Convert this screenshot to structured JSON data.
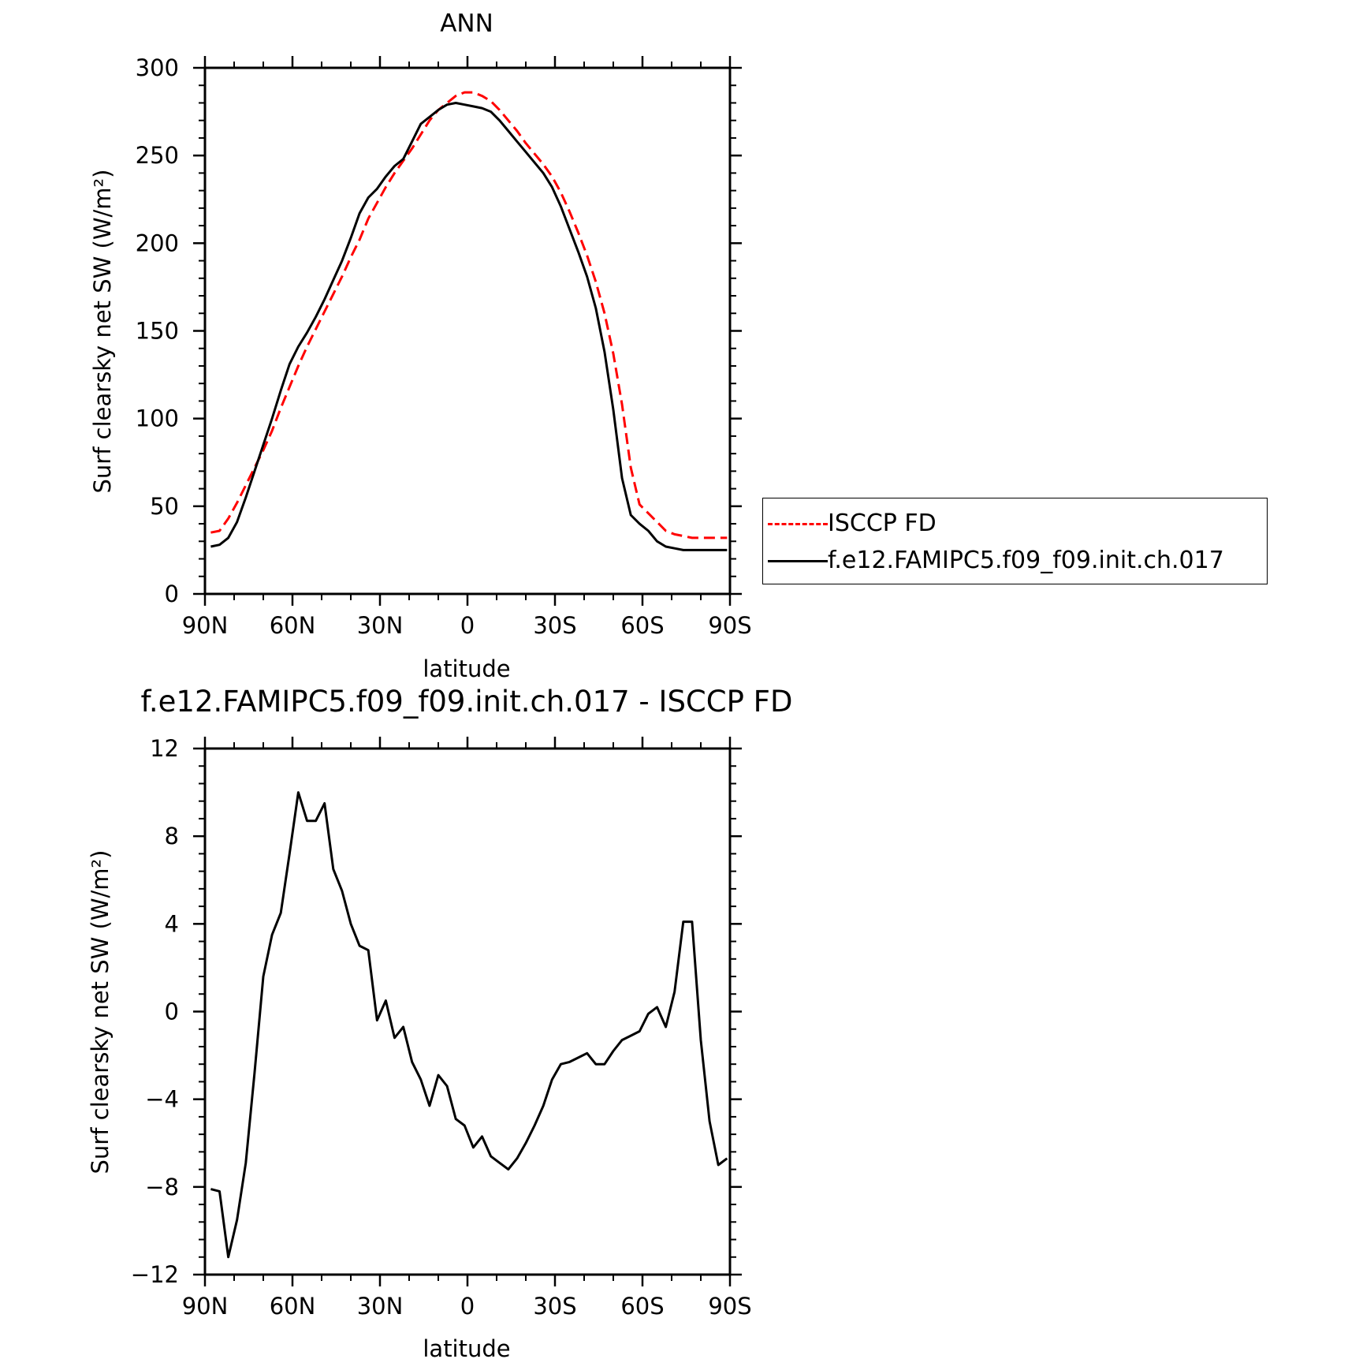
{
  "chart_data": [
    {
      "type": "line",
      "title": "ANN",
      "xlabel": "latitude",
      "ylabel": "Surf clearsky net SW (W/m²)",
      "xlim": [
        90,
        -90
      ],
      "ylim": [
        0,
        300
      ],
      "x_ticks": [
        90,
        60,
        30,
        0,
        -30,
        -60,
        -90
      ],
      "x_tick_labels": [
        "90N",
        "60N",
        "30N",
        "0",
        "30S",
        "60S",
        "90S"
      ],
      "y_ticks": [
        0,
        50,
        100,
        150,
        200,
        250,
        300
      ],
      "y_tick_labels": [
        "0",
        "50",
        "100",
        "150",
        "200",
        "250",
        "300"
      ],
      "grid": false,
      "legend": "right, outside plot",
      "x": [
        88,
        85,
        82,
        79,
        76,
        73,
        70,
        67,
        64,
        61,
        58,
        55,
        52,
        49,
        46,
        43,
        40,
        37,
        34,
        31,
        28,
        25,
        22,
        19,
        16,
        13,
        10,
        7,
        4,
        1,
        -2,
        -5,
        -8,
        -11,
        -14,
        -17,
        -20,
        -23,
        -26,
        -29,
        -32,
        -35,
        -38,
        -41,
        -44,
        -47,
        -50,
        -53,
        -56,
        -59,
        -62,
        -65,
        -68,
        -71,
        -74,
        -77,
        -80,
        -83,
        -86,
        -89
      ],
      "series": [
        {
          "name": "ISCCP FD",
          "color": "#ff0000",
          "line_style": "dashed",
          "values": [
            35,
            36,
            43,
            52,
            62,
            72,
            82,
            93,
            106,
            118,
            130,
            141,
            151,
            161,
            171,
            181,
            192,
            202,
            214,
            223,
            232,
            240,
            247,
            254,
            262,
            270,
            276,
            280,
            284,
            286,
            286,
            284,
            281,
            276,
            270,
            264,
            257,
            251,
            245,
            238,
            229,
            218,
            206,
            193,
            178,
            160,
            137,
            108,
            72,
            51,
            46,
            41,
            36,
            34,
            33,
            32,
            32,
            32,
            32,
            32
          ]
        },
        {
          "name": "f.e12.FAMIPC5.f09_f09.init.ch.017",
          "color": "#000000",
          "line_style": "solid",
          "values": [
            27,
            28,
            32,
            41,
            55,
            70,
            85,
            100,
            116,
            131,
            141,
            149,
            158,
            168,
            179,
            190,
            203,
            217,
            226,
            231,
            238,
            244,
            248,
            258,
            268,
            272,
            276,
            279,
            280,
            279,
            278,
            277,
            275,
            270,
            264,
            258,
            252,
            246,
            240,
            232,
            221,
            208,
            195,
            181,
            163,
            138,
            105,
            66,
            45,
            40,
            36,
            30,
            27,
            26,
            25,
            25,
            25,
            25,
            25,
            25
          ]
        }
      ]
    },
    {
      "type": "line",
      "title": "f.e12.FAMIPC5.f09_f09.init.ch.017 - ISCCP FD",
      "xlabel": "latitude",
      "ylabel": "Surf clearsky net SW (W/m²)",
      "xlim": [
        90,
        -90
      ],
      "ylim": [
        -12,
        12
      ],
      "x_ticks": [
        90,
        60,
        30,
        0,
        -30,
        -60,
        -90
      ],
      "x_tick_labels": [
        "90N",
        "60N",
        "30N",
        "0",
        "30S",
        "60S",
        "90S"
      ],
      "y_ticks": [
        -12,
        -8,
        -4,
        0,
        4,
        8,
        12
      ],
      "y_tick_labels": [
        "−12",
        "−8",
        "−4",
        "0",
        "4",
        "8",
        "12"
      ],
      "grid": false,
      "x": [
        88,
        85,
        82,
        79,
        76,
        73,
        70,
        67,
        64,
        61,
        58,
        55,
        52,
        49,
        46,
        43,
        40,
        37,
        34,
        31,
        28,
        25,
        22,
        19,
        16,
        13,
        10,
        7,
        4,
        1,
        -2,
        -5,
        -8,
        -11,
        -14,
        -17,
        -20,
        -23,
        -26,
        -29,
        -32,
        -35,
        -38,
        -41,
        -44,
        -47,
        -50,
        -53,
        -56,
        -59,
        -62,
        -65,
        -68,
        -71,
        -74,
        -77,
        -80,
        -83,
        -86,
        -89
      ],
      "series": [
        {
          "color": "#000000",
          "line_style": "solid",
          "values": [
            -8.1,
            -8.2,
            -11.2,
            -9.5,
            -6.9,
            -2.8,
            1.6,
            3.5,
            4.5,
            7.2,
            10.0,
            8.7,
            8.7,
            9.5,
            6.5,
            5.5,
            4.0,
            3.0,
            2.8,
            -0.4,
            0.5,
            -1.2,
            -0.7,
            -2.3,
            -3.1,
            -4.3,
            -2.9,
            -3.4,
            -4.9,
            -5.2,
            -6.2,
            -5.7,
            -6.6,
            -6.9,
            -7.2,
            -6.7,
            -6.0,
            -5.2,
            -4.3,
            -3.1,
            -2.4,
            -2.3,
            -2.1,
            -1.9,
            -2.4,
            -2.4,
            -1.8,
            -1.3,
            -1.1,
            -0.9,
            -0.1,
            0.2,
            -0.7,
            0.9,
            4.1,
            4.1,
            -1.3,
            -5.0,
            -7.0,
            -6.7
          ]
        }
      ]
    }
  ]
}
